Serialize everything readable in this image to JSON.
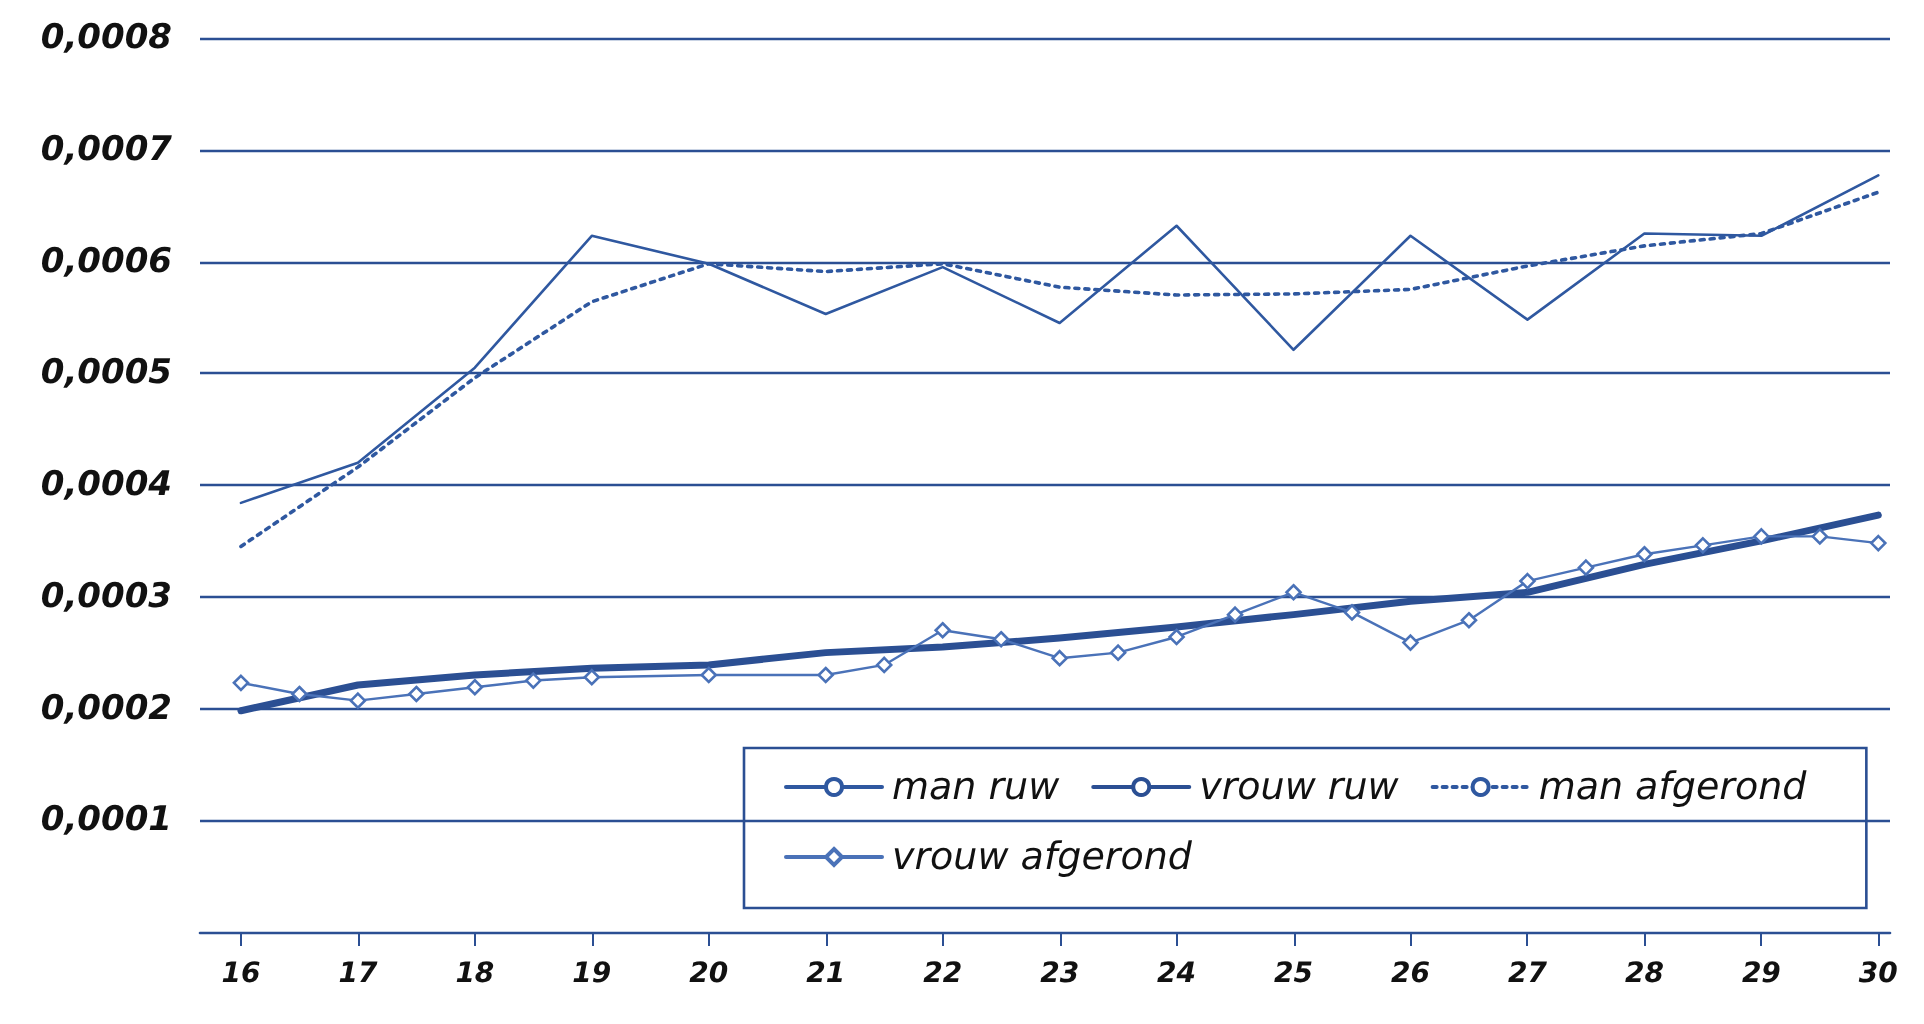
{
  "chart_data": {
    "type": "line",
    "xlim": [
      15.65,
      30.1
    ],
    "xticks": [
      16,
      17,
      18,
      19,
      20,
      21,
      22,
      23,
      24,
      25,
      26,
      27,
      28,
      29,
      30
    ],
    "ylim": [
      0,
      0.0008
    ],
    "yticks": [
      {
        "value": 0,
        "label": null
      },
      {
        "value": 0.0001,
        "label": "0,0001"
      },
      {
        "value": 0.0002,
        "label": "0,0002"
      },
      {
        "value": 0.0003,
        "label": "0,0003"
      },
      {
        "value": 0.0004,
        "label": "0,0004"
      },
      {
        "value": 0.0005,
        "label": "0,0005"
      },
      {
        "value": 0.0006,
        "label": "0,0006"
      },
      {
        "value": 0.0007,
        "label": "0,0007"
      },
      {
        "value": 0.0008,
        "label": "0,0008"
      }
    ],
    "grid": "y",
    "legend": "bottom right",
    "series": [
      {
        "name": "man ruw",
        "color": "#2f58a0",
        "line_style": "solid",
        "marker": "none",
        "x": [
          16,
          17,
          18,
          19,
          20,
          21,
          22,
          23,
          24,
          25,
          26,
          27,
          28,
          29,
          30
        ],
        "values": [
          0.000384,
          0.00042,
          0.000505,
          0.000623,
          0.000598,
          0.000553,
          0.000595,
          0.000545,
          0.000632,
          0.000521,
          0.000623,
          0.000548,
          0.000625,
          0.000623,
          0.000677
        ]
      },
      {
        "name": "man afgerond",
        "color": "#2f58a0",
        "line_style": "dotted",
        "marker": "none",
        "x": [
          16,
          17,
          18,
          19,
          20,
          21,
          22,
          23,
          24,
          25,
          26,
          27,
          28,
          29,
          30
        ],
        "values": [
          0.000345,
          0.000416,
          0.000496,
          0.000564,
          0.000598,
          0.000591,
          0.000598,
          0.000577,
          0.00057,
          0.000571,
          0.000575,
          0.000596,
          0.000614,
          0.000625,
          0.000662
        ]
      },
      {
        "name": "vrouw ruw",
        "color": "#2b4f93",
        "line_style": "solid",
        "marker": "none",
        "x": [
          16,
          17,
          18,
          19,
          20,
          21,
          22,
          23,
          24,
          25,
          26,
          27,
          28,
          29,
          30
        ],
        "values": [
          0.000198,
          0.000221,
          0.00023,
          0.000236,
          0.000239,
          0.00025,
          0.000255,
          0.000263,
          0.000273,
          0.000284,
          0.000296,
          0.000304,
          0.000329,
          0.00035,
          0.000373
        ]
      },
      {
        "name": "vrouw afgerond",
        "color": "#4a72b8",
        "line_style": "solid",
        "marker": "diamond",
        "x": [
          16,
          16.5,
          17,
          17.5,
          18,
          18.5,
          19,
          20,
          21,
          21.5,
          22,
          22.5,
          23,
          23.5,
          24,
          24.5,
          25,
          25.5,
          26,
          26.5,
          27,
          27.5,
          28,
          28.5,
          29,
          29.5,
          30
        ],
        "values": [
          0.000223,
          0.000213,
          0.000207,
          0.000213,
          0.000219,
          0.000225,
          0.000228,
          0.00023,
          0.00023,
          0.000239,
          0.00027,
          0.000262,
          0.000245,
          0.00025,
          0.000264,
          0.000284,
          0.000304,
          0.000286,
          0.000259,
          0.000279,
          0.000314,
          0.000326,
          0.000338,
          0.000346,
          0.000354,
          0.000354,
          0.000348
        ]
      }
    ]
  }
}
